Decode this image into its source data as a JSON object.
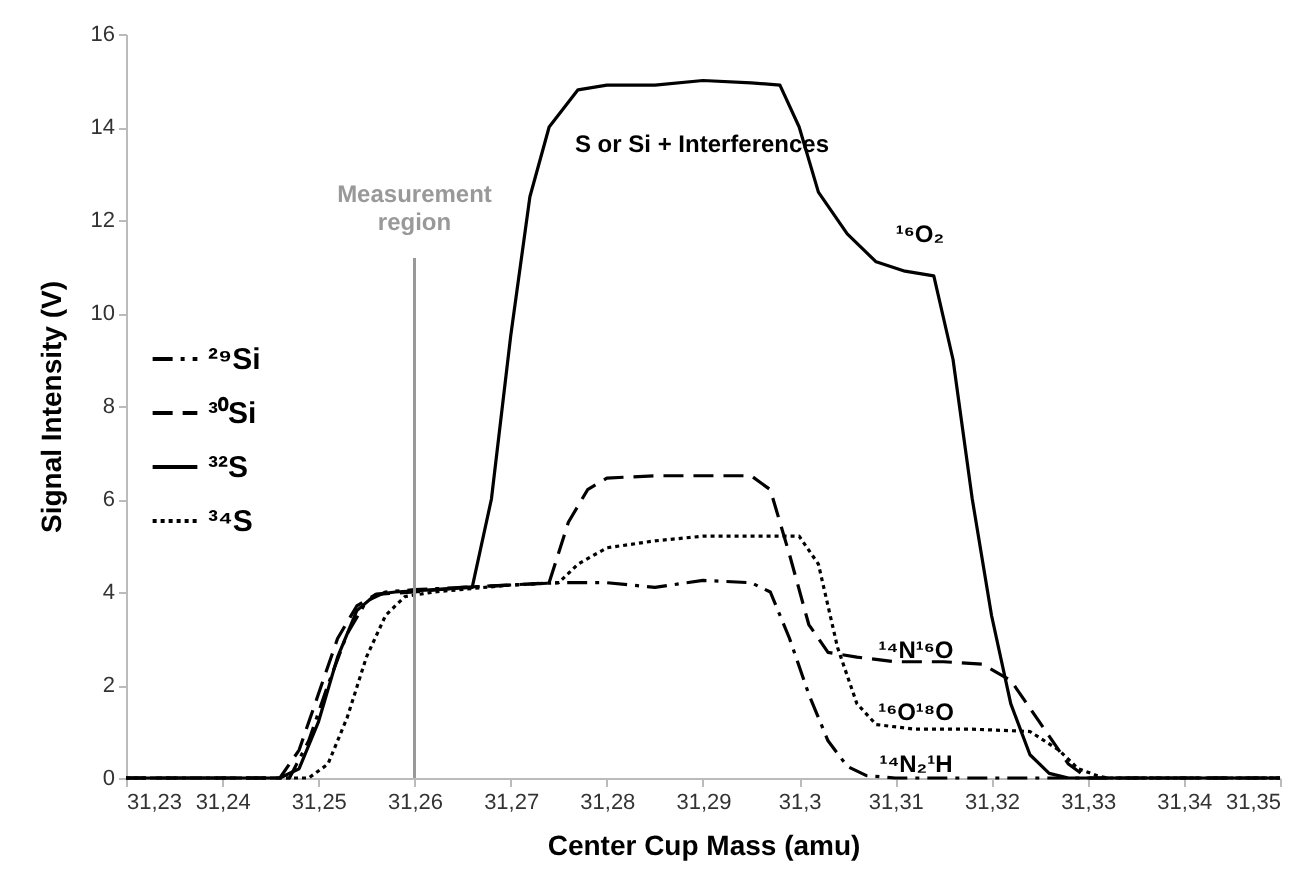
{
  "chart_data": {
    "type": "line",
    "xlabel": "Center Cup Mass (amu)",
    "ylabel": "Signal Intensity (V)",
    "xlim": [
      31.23,
      31.35
    ],
    "xticks": [
      {
        "value": 31.23,
        "label": "31,23"
      },
      {
        "value": 31.24,
        "label": "31,24"
      },
      {
        "value": 31.25,
        "label": "31,25"
      },
      {
        "value": 31.26,
        "label": "31,26"
      },
      {
        "value": 31.27,
        "label": "31,27"
      },
      {
        "value": 31.28,
        "label": "31,28"
      },
      {
        "value": 31.29,
        "label": "31,29"
      },
      {
        "value": 31.3,
        "label": "31,3"
      },
      {
        "value": 31.31,
        "label": "31,31"
      },
      {
        "value": 31.32,
        "label": "31,32"
      },
      {
        "value": 31.33,
        "label": "31,33"
      },
      {
        "value": 31.34,
        "label": "31,34"
      },
      {
        "value": 31.35,
        "label": "31,35"
      }
    ],
    "ylim": [
      0,
      16
    ],
    "yticks": [
      0,
      2,
      4,
      6,
      8,
      10,
      12,
      14,
      16
    ],
    "grid": false,
    "legend": "left",
    "series": [
      {
        "name": "²⁹Si",
        "color": "#000000",
        "line_style": "dashdot",
        "x": [
          31.23,
          31.247,
          31.249,
          31.251,
          31.253,
          31.255,
          31.257,
          31.26,
          31.265,
          31.27,
          31.275,
          31.28,
          31.285,
          31.29,
          31.295,
          31.297,
          31.299,
          31.301,
          31.303,
          31.305,
          31.307,
          31.31,
          31.35
        ],
        "values": [
          0,
          0,
          0.8,
          2.0,
          3.1,
          3.8,
          4.0,
          4.05,
          4.1,
          4.15,
          4.2,
          4.2,
          4.1,
          4.25,
          4.2,
          4.0,
          3.0,
          1.8,
          0.8,
          0.25,
          0.05,
          0,
          0
        ]
      },
      {
        "name": "³⁰Si",
        "color": "#000000",
        "line_style": "dashed",
        "x": [
          31.23,
          31.246,
          31.248,
          31.25,
          31.252,
          31.254,
          31.256,
          31.26,
          31.265,
          31.27,
          31.274,
          31.276,
          31.278,
          31.28,
          31.285,
          31.29,
          31.295,
          31.297,
          31.299,
          31.301,
          31.303,
          31.306,
          31.31,
          31.315,
          31.319,
          31.322,
          31.325,
          31.328,
          31.33,
          31.35
        ],
        "values": [
          0,
          0,
          0.6,
          1.8,
          3.0,
          3.7,
          3.95,
          4.0,
          4.1,
          4.15,
          4.2,
          5.5,
          6.2,
          6.45,
          6.5,
          6.5,
          6.5,
          6.2,
          4.8,
          3.3,
          2.7,
          2.6,
          2.5,
          2.5,
          2.45,
          2.1,
          1.2,
          0.3,
          0,
          0
        ]
      },
      {
        "name": "³²S",
        "color": "#000000",
        "line_style": "solid",
        "x": [
          31.23,
          31.246,
          31.248,
          31.25,
          31.252,
          31.254,
          31.256,
          31.258,
          31.262,
          31.266,
          31.268,
          31.27,
          31.271,
          31.272,
          31.274,
          31.277,
          31.28,
          31.285,
          31.29,
          31.295,
          31.298,
          31.3,
          31.302,
          31.305,
          31.308,
          31.311,
          31.314,
          31.316,
          31.318,
          31.32,
          31.322,
          31.324,
          31.326,
          31.328,
          31.35
        ],
        "values": [
          0,
          0,
          0.2,
          1.2,
          2.6,
          3.6,
          3.95,
          4.0,
          4.05,
          4.1,
          6,
          9.5,
          11,
          12.5,
          14,
          14.8,
          14.9,
          14.9,
          15,
          14.95,
          14.9,
          14,
          12.6,
          11.7,
          11.1,
          10.9,
          10.8,
          9,
          6,
          3.5,
          1.6,
          0.5,
          0.1,
          0,
          0
        ]
      },
      {
        "name": "³⁴S",
        "color": "#000000",
        "line_style": "dotted",
        "x": [
          31.23,
          31.249,
          31.251,
          31.253,
          31.255,
          31.257,
          31.259,
          31.262,
          31.27,
          31.275,
          31.277,
          31.28,
          31.285,
          31.29,
          31.295,
          31.3,
          31.302,
          31.304,
          31.306,
          31.308,
          31.312,
          31.318,
          31.324,
          31.327,
          31.329,
          31.331,
          31.332,
          31.35
        ],
        "values": [
          0,
          0,
          0.3,
          1.3,
          2.6,
          3.5,
          3.9,
          4.0,
          4.15,
          4.2,
          4.6,
          4.95,
          5.1,
          5.2,
          5.2,
          5.2,
          4.6,
          2.8,
          1.6,
          1.15,
          1.05,
          1.05,
          1.0,
          0.6,
          0.2,
          0.05,
          0,
          0
        ]
      }
    ],
    "ref_lines": [
      {
        "axis": "x",
        "value": 31.26,
        "label": "Measurement region",
        "color": "#999999"
      }
    ],
    "annotations": [
      "S or Si + Interferences",
      "¹⁶O₂",
      "¹⁴N¹⁶O",
      "¹⁶O¹⁸O",
      "¹⁴N₂¹H"
    ]
  }
}
